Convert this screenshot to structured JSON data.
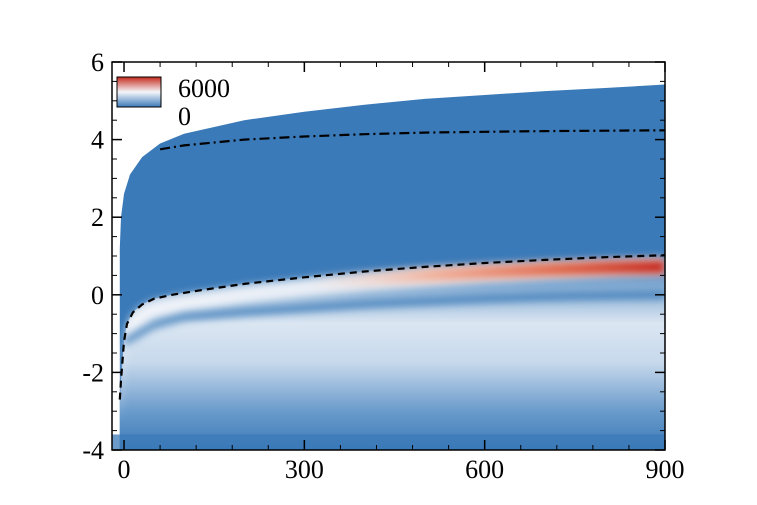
{
  "chart_data": {
    "type": "heatmap",
    "title": "",
    "xlabel": "",
    "ylabel": "",
    "xlim": [
      -20,
      900
    ],
    "ylim": [
      -4,
      6
    ],
    "x_ticks": [
      0,
      300,
      600,
      900
    ],
    "x_tick_labels": [
      "0",
      "300",
      "600",
      "900"
    ],
    "y_ticks": [
      -4,
      -2,
      0,
      2,
      4,
      6
    ],
    "y_tick_labels": [
      "-4",
      "-2",
      "0",
      "2",
      "4",
      "6"
    ],
    "colorbar": {
      "min": 0,
      "max": 6000,
      "min_label": "0",
      "max_label": "6000",
      "colors": [
        "#3b7ab8",
        "#f4f6fa",
        "#c62a1e"
      ]
    },
    "legend_position": "top-left",
    "grid": false,
    "outer_boundary": {
      "x": [
        -7,
        -5,
        0,
        10,
        30,
        60,
        100,
        200,
        300,
        400,
        500,
        600,
        700,
        800,
        900
      ],
      "y": [
        1.2,
        2.0,
        2.6,
        3.1,
        3.55,
        3.9,
        4.15,
        4.5,
        4.72,
        4.9,
        5.05,
        5.15,
        5.25,
        5.33,
        5.42
      ]
    },
    "dashed_contour": {
      "x": [
        -7,
        -5,
        0,
        5,
        15,
        30,
        50,
        80,
        120,
        200,
        300,
        400,
        500,
        600,
        700,
        800,
        900
      ],
      "y": [
        -2.7,
        -2.2,
        -1.2,
        -0.75,
        -0.45,
        -0.25,
        -0.1,
        0.0,
        0.1,
        0.28,
        0.45,
        0.6,
        0.72,
        0.82,
        0.9,
        0.97,
        1.02
      ]
    },
    "dashdot_contour": {
      "x": [
        60,
        100,
        200,
        300,
        400,
        500,
        600,
        700,
        800,
        900
      ],
      "y": [
        3.75,
        3.85,
        4.0,
        4.08,
        4.14,
        4.18,
        4.2,
        4.22,
        4.23,
        4.24
      ]
    },
    "peak_band": {
      "x": [
        300,
        400,
        500,
        600,
        700,
        800,
        900
      ],
      "y": [
        0.3,
        0.4,
        0.5,
        0.58,
        0.65,
        0.7,
        0.72
      ],
      "value": [
        1500,
        2500,
        3500,
        4500,
        5300,
        5800,
        6000
      ]
    },
    "trough_band": {
      "x": [
        0,
        50,
        100,
        200,
        300,
        400,
        500,
        600,
        700,
        800,
        900
      ],
      "y": [
        -1.2,
        -0.75,
        -0.55,
        -0.42,
        -0.32,
        -0.22,
        -0.15,
        -0.08,
        -0.03,
        0.0,
        0.02
      ]
    }
  }
}
